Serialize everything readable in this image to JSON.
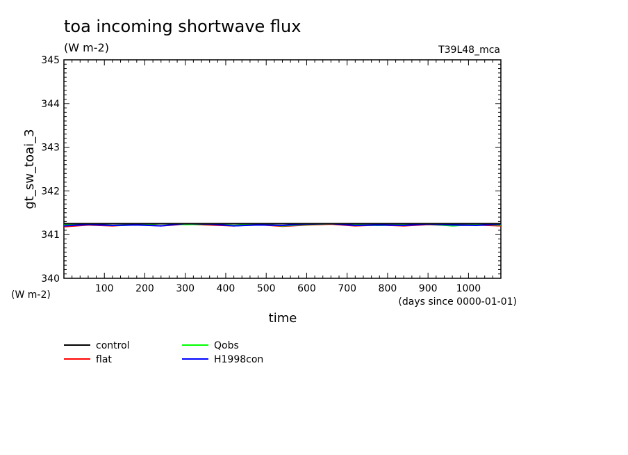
{
  "chart_data": {
    "type": "line",
    "title": "toa incoming shortwave flux",
    "units": "(W m-2)",
    "tag": "T39L48_mca",
    "xlabel": "time",
    "xunits": "(days since 0000-01-01)",
    "ylabel": "gt_sw_toai_3",
    "yunits": "(W m-2)",
    "xlim": [
      0,
      1080
    ],
    "ylim": [
      340,
      345
    ],
    "xticks": [
      100,
      200,
      300,
      400,
      500,
      600,
      700,
      800,
      900,
      1000
    ],
    "yticks": [
      340,
      341,
      342,
      343,
      344,
      345
    ],
    "grid": false,
    "legend_position": "bottom-left",
    "x": [
      0,
      60,
      120,
      180,
      240,
      300,
      360,
      420,
      480,
      540,
      600,
      660,
      720,
      780,
      840,
      900,
      960,
      1020,
      1080
    ],
    "series": [
      {
        "name": "control",
        "color": "#000000",
        "values": [
          341.25,
          341.25,
          341.25,
          341.25,
          341.25,
          341.25,
          341.25,
          341.25,
          341.25,
          341.25,
          341.25,
          341.25,
          341.25,
          341.25,
          341.25,
          341.25,
          341.25,
          341.25,
          341.25
        ]
      },
      {
        "name": "flat",
        "color": "#ff0000",
        "values": [
          341.18,
          341.22,
          341.2,
          341.23,
          341.2,
          341.24,
          341.22,
          341.2,
          341.23,
          341.19,
          341.22,
          341.24,
          341.2,
          341.22,
          341.2,
          341.23,
          341.21,
          341.22,
          341.2
        ]
      },
      {
        "name": "Qobs",
        "color": "#00ff00",
        "values": [
          341.22,
          341.24,
          341.21,
          341.22,
          341.25,
          341.23,
          341.24,
          341.21,
          341.24,
          341.2,
          341.23,
          341.25,
          341.22,
          341.21,
          341.23,
          341.24,
          341.2,
          341.23,
          341.22
        ]
      },
      {
        "name": "H1998con",
        "color": "#0000ff",
        "values": [
          341.2,
          341.23,
          341.21,
          341.22,
          341.2,
          341.25,
          341.24,
          341.2,
          341.22,
          341.21,
          341.24,
          341.25,
          341.21,
          341.22,
          341.21,
          341.24,
          341.22,
          341.21,
          341.24
        ]
      }
    ]
  }
}
